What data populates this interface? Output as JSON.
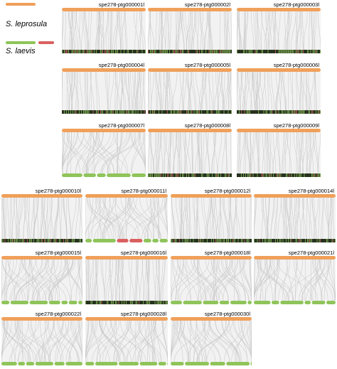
{
  "legend": {
    "species": [
      {
        "name": "S. leprosula",
        "colors": [
          "#f0a05a"
        ]
      },
      {
        "name": "S. laevis",
        "colors": [
          "#8fc45a",
          "#d9605f"
        ]
      }
    ]
  },
  "colors": {
    "reference_bar": "#f0a05a",
    "query_bar_green": "#8fc45a",
    "query_bar_red": "#d9605f",
    "link_line": "#c9c9c9",
    "panel_fill": "#f2f2f2",
    "dark_strip": "#2e3a25"
  },
  "panels": [
    {
      "id": "spe278-ptg000001l",
      "bottom": "strip"
    },
    {
      "id": "spe278-ptg000002l",
      "bottom": "strip"
    },
    {
      "id": "spe278-ptg000003l",
      "bottom": "strip"
    },
    {
      "id": "spe278-ptg000004l",
      "bottom": "strip"
    },
    {
      "id": "spe278-ptg000005l",
      "bottom": "strip"
    },
    {
      "id": "spe278-ptg000006l",
      "bottom": "strip"
    },
    {
      "id": "spe278-ptg000007l",
      "bottom": "segments"
    },
    {
      "id": "spe278-ptg000008l",
      "bottom": "strip"
    },
    {
      "id": "spe278-ptg000009l",
      "bottom": "strip"
    },
    {
      "id": "spe278-ptg000010l",
      "bottom": "strip"
    },
    {
      "id": "spe278-ptg000011l",
      "bottom": "segments-red"
    },
    {
      "id": "spe278-ptg000012l",
      "bottom": "strip"
    },
    {
      "id": "spe278-ptg000014l",
      "bottom": "strip"
    },
    {
      "id": "spe278-ptg000015l",
      "bottom": "segments"
    },
    {
      "id": "spe278-ptg000016l",
      "bottom": "strip"
    },
    {
      "id": "spe278-ptg000018l",
      "bottom": "segments"
    },
    {
      "id": "spe278-ptg000021l",
      "bottom": "segments"
    },
    {
      "id": "spe278-ptg000022l",
      "bottom": "segments"
    },
    {
      "id": "spe278-ptg000028l",
      "bottom": "segments"
    },
    {
      "id": "spe278-ptg000030l",
      "bottom": "segments"
    }
  ]
}
